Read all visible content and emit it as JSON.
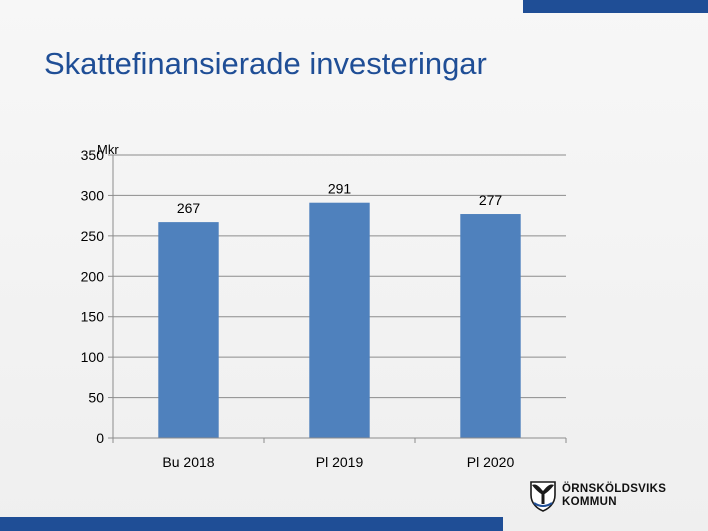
{
  "slide": {
    "title": "Skattefinansierade investeringar"
  },
  "brand": {
    "accent_color": "#1f4e96",
    "logo_icon": "crest-icon",
    "logo_line1": "ÖRNSKÖLDSVIKS",
    "logo_line2": "KOMMUN"
  },
  "chart_data": {
    "type": "bar",
    "title": "",
    "xlabel": "",
    "ylabel": "Mkr",
    "categories": [
      "Bu 2018",
      "Pl 2019",
      "Pl 2020"
    ],
    "values": [
      267,
      291,
      277
    ],
    "data_labels": [
      "267",
      "291",
      "277"
    ],
    "ylim": [
      0,
      350
    ],
    "yticks": [
      0,
      50,
      100,
      150,
      200,
      250,
      300,
      350
    ],
    "grid": true,
    "legend": "none",
    "bar_color": "#4f81bd"
  }
}
